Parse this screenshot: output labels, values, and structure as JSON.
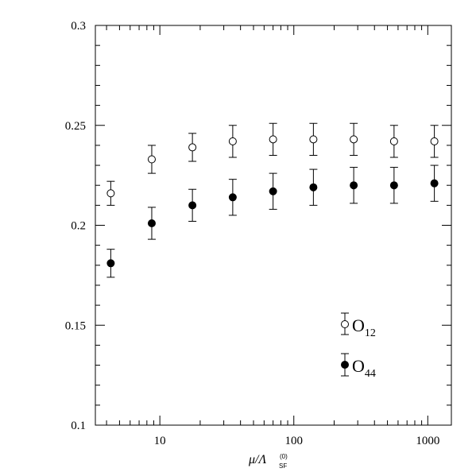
{
  "chart_data": {
    "type": "scatter",
    "x_scale": "log",
    "xlim": [
      3.3,
      1500
    ],
    "ylim": [
      0.1,
      0.3
    ],
    "xlabel": {
      "main": "μ/Λ",
      "superscript": "(0)",
      "subscript": "SF"
    },
    "ylabel": "",
    "grid": false,
    "x_ticks_labeled": [
      "10",
      "100",
      "1000"
    ],
    "y_ticks_labeled": [
      "0.1",
      "0.15",
      "0.2",
      "0.25",
      "0.3"
    ],
    "legend_position": "bottom-right",
    "x": [
      4.3,
      8.7,
      17.5,
      35,
      70,
      140,
      280,
      560,
      1120
    ],
    "series": [
      {
        "name": "O12",
        "name_main": "O",
        "name_sub": "12",
        "marker": "open-circle",
        "values": [
          0.216,
          0.233,
          0.239,
          0.242,
          0.243,
          0.243,
          0.243,
          0.242,
          0.242
        ],
        "err": [
          0.006,
          0.007,
          0.007,
          0.008,
          0.008,
          0.008,
          0.008,
          0.008,
          0.008
        ]
      },
      {
        "name": "O44",
        "name_main": "O",
        "name_sub": "44",
        "marker": "filled-circle",
        "values": [
          0.181,
          0.201,
          0.21,
          0.214,
          0.217,
          0.219,
          0.22,
          0.22,
          0.221
        ],
        "err": [
          0.007,
          0.008,
          0.008,
          0.009,
          0.009,
          0.009,
          0.009,
          0.009,
          0.009
        ]
      }
    ]
  }
}
